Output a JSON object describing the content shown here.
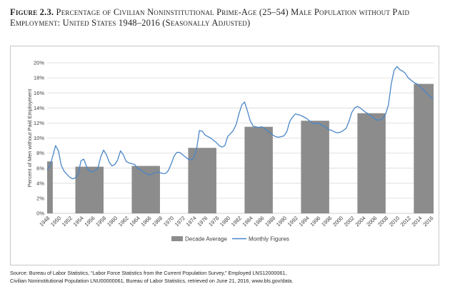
{
  "title": {
    "number": "Figure 2.3.",
    "text": "Percentage of Civilian Noninstitutional Prime-Age (25–54) Male Population without Paid Employment: United States 1948–2016 (Seasonally Adjusted)"
  },
  "source": {
    "line1": "Source: Bureau of Labor Statistics, “Labor Force Statistics from the Current Population Survey,” Employed LNS12000061,",
    "line2": "Civilian Noninstitutional Population LNU00000061, Bureau of Labor Statistics, retrieved on June 21, 2016, www.bls.gov/data."
  },
  "colors": {
    "bar": "#8c8c8c",
    "line": "#4a86c8",
    "grid": "#d9d9d9",
    "axis": "#bfbfbf"
  },
  "chart_data": {
    "type": "bar+line",
    "ylabel": "Percent of Men without Paid Employment",
    "ylim": [
      0,
      20
    ],
    "yticks": [
      "0%",
      "2%",
      "4%",
      "6%",
      "8%",
      "10%",
      "12%",
      "14%",
      "16%",
      "18%",
      "20%"
    ],
    "xlim": [
      1948,
      2016.5
    ],
    "xticks": [
      1948,
      1950,
      1952,
      1954,
      1956,
      1958,
      1960,
      1962,
      1964,
      1966,
      1968,
      1970,
      1972,
      1974,
      1976,
      1978,
      1980,
      1982,
      1984,
      1986,
      1988,
      1990,
      1992,
      1994,
      1996,
      1998,
      2000,
      2002,
      2004,
      2006,
      2008,
      2010,
      2012,
      2014,
      2016
    ],
    "grid": true,
    "legend": {
      "position": "bottom",
      "items": [
        "Decade Average",
        "Monthly Figures"
      ]
    },
    "series": [
      {
        "name": "Decade Average",
        "type": "bar",
        "bars": [
          {
            "start": 1948,
            "end": 1949,
            "value": 6.9
          },
          {
            "start": 1953,
            "end": 1958,
            "value": 6.2
          },
          {
            "start": 1963,
            "end": 1968,
            "value": 6.3
          },
          {
            "start": 1973,
            "end": 1978,
            "value": 8.7
          },
          {
            "start": 1983,
            "end": 1988,
            "value": 11.5
          },
          {
            "start": 1993,
            "end": 1998,
            "value": 12.3
          },
          {
            "start": 2003,
            "end": 2008,
            "value": 13.3
          },
          {
            "start": 2013,
            "end": 2016.5,
            "value": 17.2
          }
        ]
      },
      {
        "name": "Monthly Figures",
        "type": "line",
        "x": [
          1948,
          1948.5,
          1949,
          1949.5,
          1950,
          1950.5,
          1951,
          1951.5,
          1952,
          1952.5,
          1953,
          1953.5,
          1954,
          1954.5,
          1955,
          1955.5,
          1956,
          1956.5,
          1957,
          1957.5,
          1958,
          1958.5,
          1959,
          1959.5,
          1960,
          1960.5,
          1961,
          1961.5,
          1962,
          1962.5,
          1963,
          1963.5,
          1964,
          1964.5,
          1965,
          1965.5,
          1966,
          1966.5,
          1967,
          1967.5,
          1968,
          1968.5,
          1969,
          1969.5,
          1970,
          1970.5,
          1971,
          1971.5,
          1972,
          1972.5,
          1973,
          1973.5,
          1974,
          1974.5,
          1975,
          1975.5,
          1976,
          1976.5,
          1977,
          1977.5,
          1978,
          1978.5,
          1979,
          1979.5,
          1980,
          1980.5,
          1981,
          1981.5,
          1982,
          1982.5,
          1983,
          1983.5,
          1984,
          1984.5,
          1985,
          1985.5,
          1986,
          1986.5,
          1987,
          1987.5,
          1988,
          1988.5,
          1989,
          1989.5,
          1990,
          1990.5,
          1991,
          1991.5,
          1992,
          1992.5,
          1993,
          1993.5,
          1994,
          1994.5,
          1995,
          1995.5,
          1996,
          1996.5,
          1997,
          1997.5,
          1998,
          1998.5,
          1999,
          1999.5,
          2000,
          2000.5,
          2001,
          2001.5,
          2002,
          2002.5,
          2003,
          2003.5,
          2004,
          2004.5,
          2005,
          2005.5,
          2006,
          2006.5,
          2007,
          2007.5,
          2008,
          2008.5,
          2009,
          2009.5,
          2010,
          2010.5,
          2011,
          2011.5,
          2012,
          2012.5,
          2013,
          2013.5,
          2014,
          2014.5,
          2015,
          2015.5,
          2016,
          2016.4
        ],
        "values": [
          5.8,
          6.3,
          7.6,
          9.0,
          8.3,
          6.4,
          5.6,
          5.2,
          4.8,
          4.6,
          4.7,
          5.2,
          7.0,
          7.2,
          6.2,
          5.6,
          5.5,
          5.7,
          6.0,
          7.5,
          8.4,
          7.8,
          6.8,
          6.3,
          6.5,
          7.1,
          8.3,
          7.8,
          6.9,
          6.7,
          6.6,
          6.5,
          6.0,
          5.8,
          5.5,
          5.3,
          5.1,
          5.2,
          5.4,
          5.5,
          5.4,
          5.3,
          5.3,
          5.7,
          6.6,
          7.6,
          8.1,
          8.1,
          7.8,
          7.5,
          7.2,
          7.1,
          7.4,
          8.6,
          11.0,
          10.9,
          10.4,
          10.2,
          10.0,
          9.7,
          9.4,
          9.0,
          8.8,
          9.0,
          10.2,
          10.6,
          11.0,
          11.8,
          13.2,
          14.4,
          14.8,
          13.6,
          12.3,
          11.6,
          11.5,
          11.4,
          11.5,
          11.3,
          11.0,
          10.7,
          10.4,
          10.2,
          10.1,
          10.2,
          10.3,
          10.9,
          12.2,
          12.8,
          13.2,
          13.1,
          13.0,
          12.8,
          12.6,
          12.3,
          12.0,
          11.9,
          12.0,
          11.8,
          11.6,
          11.4,
          11.1,
          11.0,
          10.8,
          10.7,
          10.8,
          11.0,
          11.3,
          12.2,
          13.4,
          14.0,
          14.2,
          14.0,
          13.7,
          13.4,
          13.2,
          12.9,
          12.6,
          12.4,
          12.4,
          12.6,
          13.2,
          14.4,
          17.2,
          19.0,
          19.5,
          19.1,
          18.9,
          18.6,
          18.0,
          17.7,
          17.4,
          17.2,
          17.0,
          16.5,
          16.2,
          15.8,
          15.4,
          15.2
        ]
      }
    ]
  }
}
